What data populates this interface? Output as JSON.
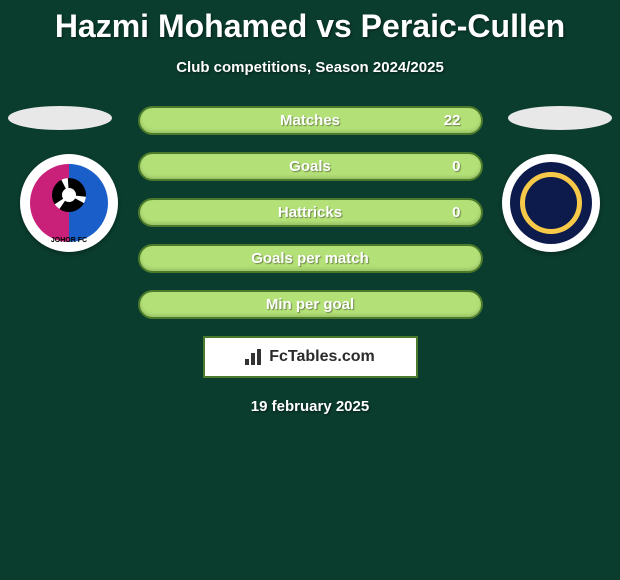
{
  "title": "Hazmi Mohamed vs Peraic-Cullen",
  "subtitle": "Club competitions, Season 2024/2025",
  "left_club": {
    "name": "JOHOR FC"
  },
  "right_club": {
    "name": "Central Coast Mariners"
  },
  "stats": [
    {
      "label": "Matches",
      "value": "22",
      "show_value": true
    },
    {
      "label": "Goals",
      "value": "0",
      "show_value": true
    },
    {
      "label": "Hattricks",
      "value": "0",
      "show_value": true
    },
    {
      "label": "Goals per match",
      "value": "",
      "show_value": false
    },
    {
      "label": "Min per goal",
      "value": "",
      "show_value": false
    }
  ],
  "logo_text": "FcTables.com",
  "date": "19 february 2025",
  "colors": {
    "background": "#0a3d2e",
    "pill_bg": "#b3e077",
    "pill_border": "#4a7a2a",
    "title_color": "#ffffff"
  }
}
